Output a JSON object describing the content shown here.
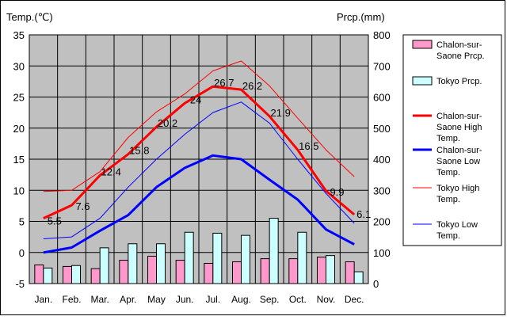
{
  "chart_data": {
    "type": "bar+line",
    "y_left_label": "Temp.(℃)",
    "y_right_label": "Prcp.(mm)",
    "categories": [
      "Jan.",
      "Feb.",
      "Mar.",
      "Apr.",
      "May",
      "Jun.",
      "Jul.",
      "Aug.",
      "Sep.",
      "Oct.",
      "Nov.",
      "Dec."
    ],
    "ylim_left": [
      -5,
      35
    ],
    "ylim_right": [
      0,
      800
    ],
    "yticks_left": [
      "-5",
      "0",
      "5",
      "10",
      "15",
      "20",
      "25",
      "30",
      "35"
    ],
    "yticks_right": [
      "0",
      "100",
      "200",
      "300",
      "400",
      "500",
      "600",
      "700",
      "800"
    ],
    "grid": true,
    "legend_position": "right",
    "bar_series": [
      {
        "name": "Chalon-sur-Saone Prcp.",
        "color": "#ff99cc",
        "values": [
          60,
          55,
          48,
          75,
          88,
          75,
          65,
          70,
          80,
          80,
          85,
          70
        ]
      },
      {
        "name": "Tokyo Prcp.",
        "color": "#ccffff",
        "values": [
          50,
          58,
          115,
          128,
          128,
          165,
          162,
          155,
          210,
          165,
          90,
          38
        ]
      }
    ],
    "line_series": [
      {
        "name": "Chalon-sur-Saone High Temp.",
        "color": "#ff0000",
        "width": 3,
        "values": [
          5.5,
          7.6,
          12.4,
          15.8,
          20.2,
          24,
          26.7,
          26.2,
          21.9,
          16.5,
          9.9,
          6.1
        ],
        "labels": [
          "5.5",
          "7.6",
          "12.4",
          "15.8",
          "20.2",
          "24",
          "26.7",
          "26.2",
          "21.9",
          "16.5",
          "9.9",
          "6.1"
        ]
      },
      {
        "name": "Chalon-sur-Saone Low Temp.",
        "color": "#0000ff",
        "width": 3,
        "values": [
          0,
          0.8,
          3.5,
          6,
          10.5,
          13.6,
          15.6,
          15,
          11.7,
          8.5,
          3.7,
          1.3
        ]
      },
      {
        "name": "Tokyo High Temp.",
        "color": "#ff0000",
        "width": 1,
        "values": [
          9.8,
          10,
          13,
          18.5,
          22.6,
          25.5,
          29.2,
          30.8,
          26.8,
          21.6,
          16.5,
          12.2
        ]
      },
      {
        "name": "Tokyo Low Temp.",
        "color": "#0000ff",
        "width": 1,
        "values": [
          2.2,
          2.5,
          5.5,
          10.5,
          15,
          19,
          22.5,
          24.2,
          20.8,
          15,
          9.5,
          4.7
        ]
      }
    ]
  },
  "legend": {
    "items": [
      {
        "line1": "Chalon-sur-",
        "line2": "Saone Prcp.",
        "line3": ""
      },
      {
        "line1": "Tokyo Prcp.",
        "line2": "",
        "line3": ""
      },
      {
        "line1": "Chalon-sur-",
        "line2": "Saone High",
        "line3": "Temp."
      },
      {
        "line1": "Chalon-sur-",
        "line2": "Saone Low",
        "line3": "Temp."
      },
      {
        "line1": "Tokyo High",
        "line2": "Temp.",
        "line3": ""
      },
      {
        "line1": "Tokyo Low",
        "line2": "Temp.",
        "line3": ""
      }
    ]
  }
}
